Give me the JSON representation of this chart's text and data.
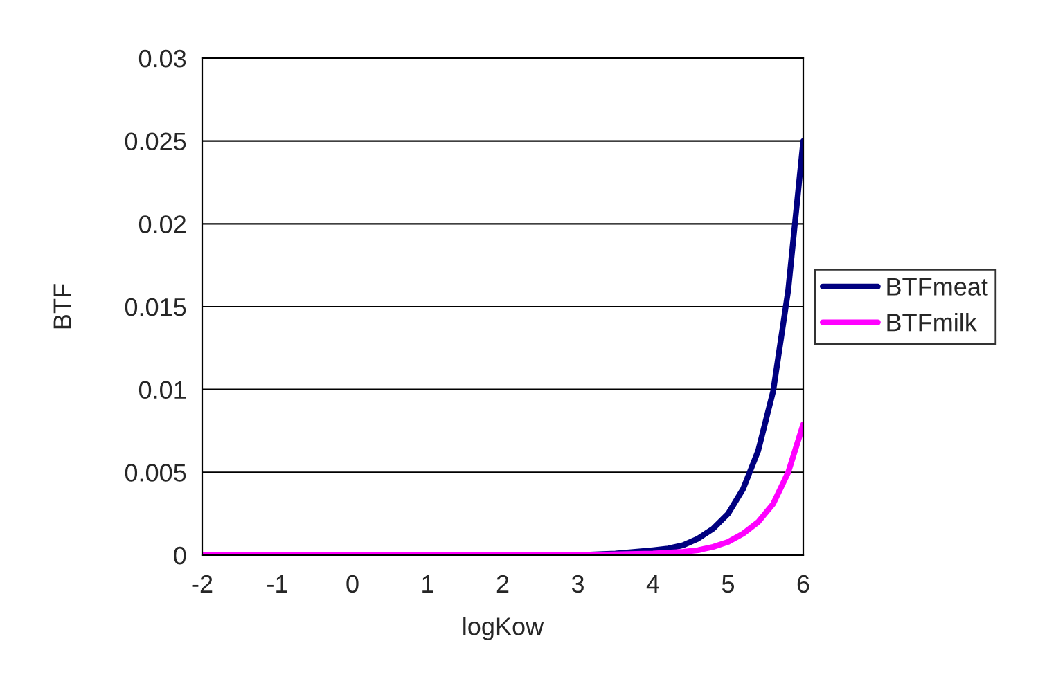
{
  "chart_data": {
    "type": "line",
    "xlabel": "logKow",
    "ylabel": "BTF",
    "xlim": [
      -2,
      6
    ],
    "xticks": [
      -2,
      -1,
      0,
      1,
      2,
      3,
      4,
      5,
      6
    ],
    "ylim": [
      0,
      0.03
    ],
    "yticks": [
      0,
      0.005,
      0.01,
      0.015,
      0.02,
      0.025,
      0.03
    ],
    "grid": "y",
    "legend": "right",
    "marker": "none",
    "line_style": "solid",
    "series": [
      {
        "name": "BTFmeat",
        "color": "#000080",
        "x": [
          -2,
          3,
          3.5,
          4.0,
          4.2,
          4.4,
          4.6,
          4.8,
          5.0,
          5.2,
          5.4,
          5.6,
          5.8,
          6.0
        ],
        "values": [
          0,
          0,
          0.0001,
          0.0003,
          0.0004,
          0.0006,
          0.001,
          0.0016,
          0.0025,
          0.004,
          0.0063,
          0.0099,
          0.016,
          0.025
        ]
      },
      {
        "name": "BTFmilk",
        "color": "#ff00ff",
        "x": [
          -2,
          3,
          4.0,
          4.4,
          4.6,
          4.8,
          5.0,
          5.2,
          5.4,
          5.6,
          5.8,
          6.0
        ],
        "values": [
          0,
          0,
          0.0001,
          0.0002,
          0.0003,
          0.0005,
          0.0008,
          0.0013,
          0.002,
          0.0031,
          0.005,
          0.0079
        ]
      }
    ]
  }
}
